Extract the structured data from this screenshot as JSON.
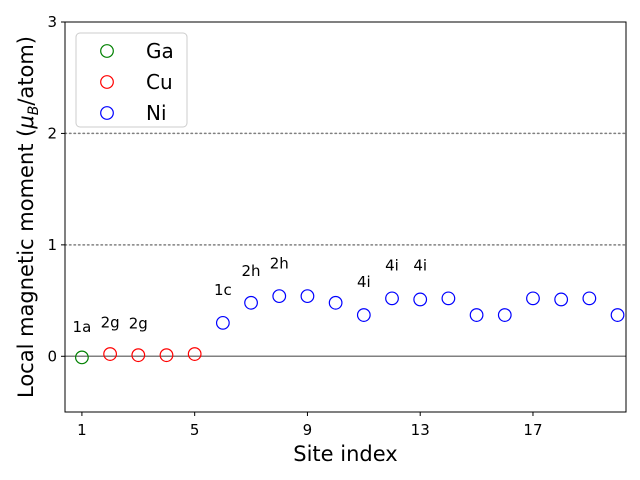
{
  "chart_data": {
    "type": "scatter",
    "title": "",
    "xlabel": "Site index",
    "ylabel_main": "Local magnetic moment (",
    "ylabel_mu": "μ",
    "ylabel_sub": "B",
    "ylabel_tail": "/atom)",
    "xlim": [
      0.4,
      20.3
    ],
    "ylim": [
      -0.5,
      3.0
    ],
    "x_ticks": [
      1,
      5,
      9,
      13,
      17
    ],
    "x_tick_labels": [
      "1",
      "5",
      "9",
      "13",
      "17"
    ],
    "y_ticks": [
      0,
      1,
      2,
      3
    ],
    "y_tick_labels": [
      "0",
      "1",
      "2",
      "3"
    ],
    "reference_lines": [
      {
        "y": 0,
        "style": "solid",
        "color": "#808080"
      },
      {
        "y": 1,
        "style": "dotted",
        "color": "#808080"
      },
      {
        "y": 2,
        "style": "dotted",
        "color": "#808080"
      }
    ],
    "legend_position": "top-left",
    "series": [
      {
        "name": "Ga",
        "color": "#008000",
        "x": [
          1
        ],
        "y": [
          -0.01
        ]
      },
      {
        "name": "Cu",
        "color": "#ff0000",
        "x": [
          2,
          3,
          4,
          5
        ],
        "y": [
          0.02,
          0.01,
          0.01,
          0.02
        ]
      },
      {
        "name": "Ni",
        "color": "#0000ff",
        "x": [
          6,
          7,
          8,
          9,
          10,
          11,
          12,
          13,
          14,
          15,
          16,
          17,
          18,
          19,
          20
        ],
        "y": [
          0.3,
          0.48,
          0.54,
          0.54,
          0.48,
          0.37,
          0.52,
          0.51,
          0.52,
          0.37,
          0.37,
          0.52,
          0.51,
          0.52,
          0.37
        ]
      }
    ],
    "annotations": [
      {
        "text": "1a",
        "x": 1,
        "y": 0.22
      },
      {
        "text": "2g",
        "x": 2,
        "y": 0.26
      },
      {
        "text": "2g",
        "x": 3,
        "y": 0.25
      },
      {
        "text": "1c",
        "x": 6,
        "y": 0.55
      },
      {
        "text": "2h",
        "x": 7,
        "y": 0.72
      },
      {
        "text": "2h",
        "x": 8,
        "y": 0.79
      },
      {
        "text": "4i",
        "x": 11,
        "y": 0.62
      },
      {
        "text": "4i",
        "x": 12,
        "y": 0.77
      },
      {
        "text": "4i",
        "x": 13,
        "y": 0.77
      }
    ]
  }
}
